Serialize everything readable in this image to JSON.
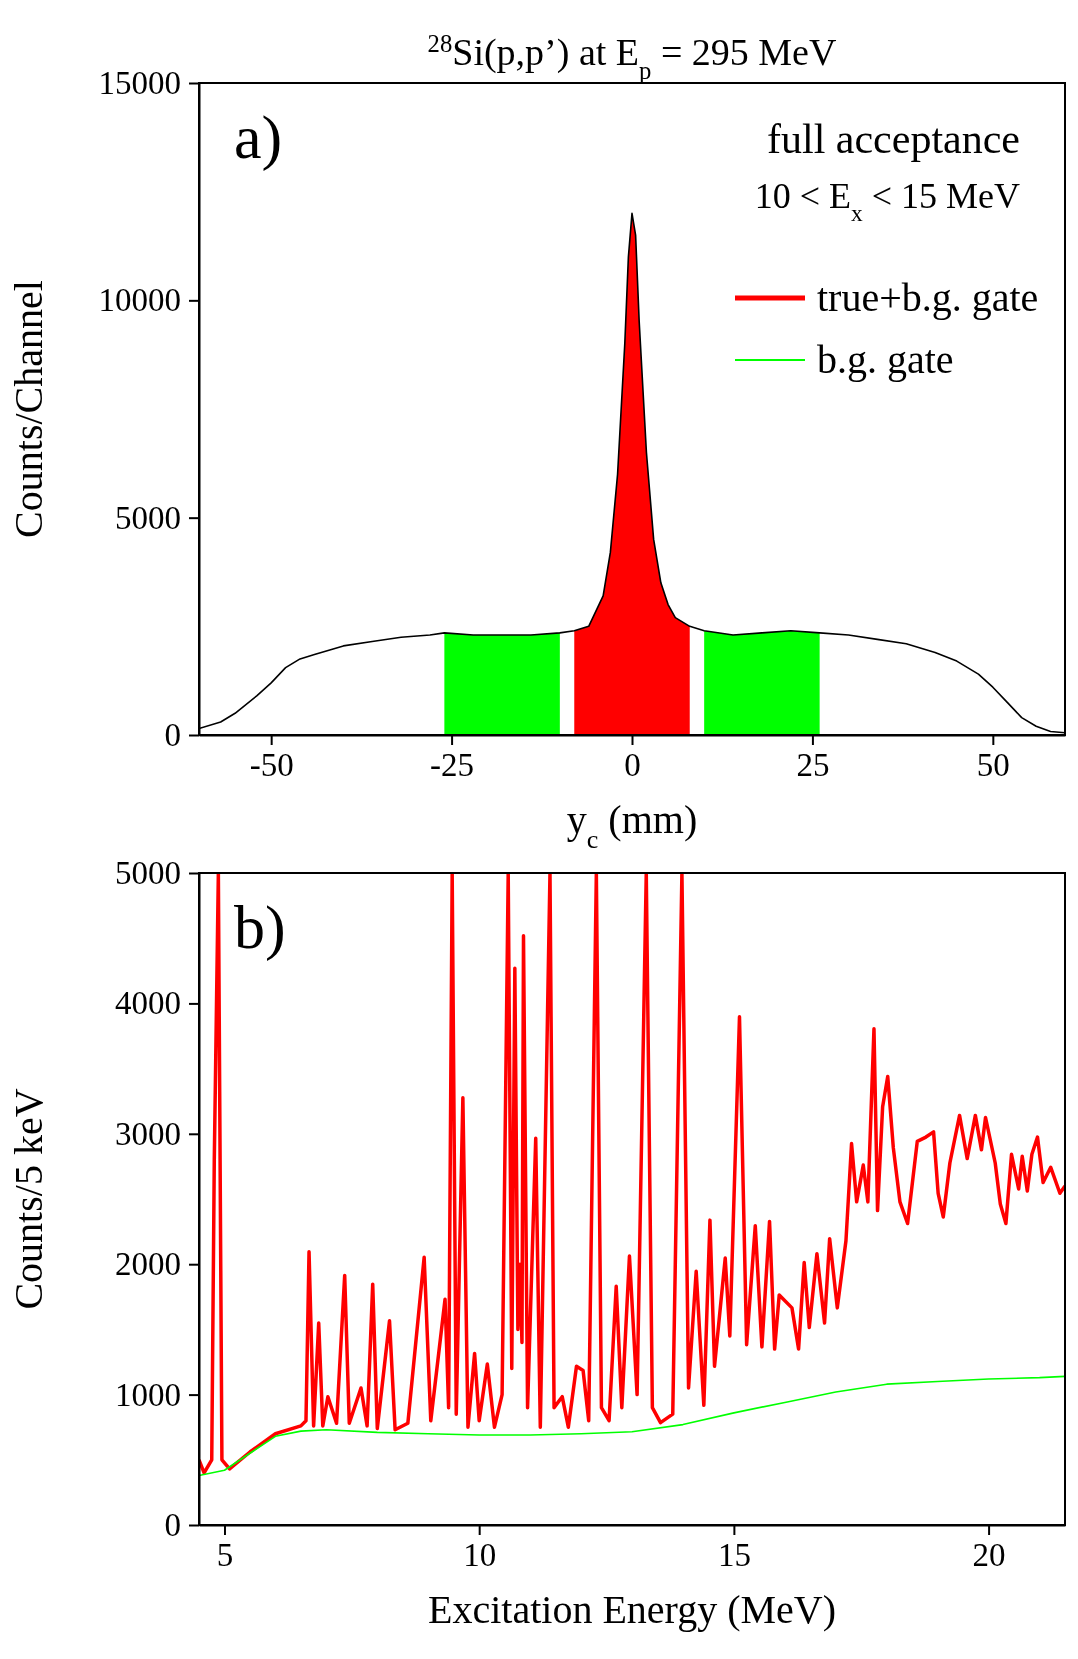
{
  "chart_data": [
    {
      "type": "area",
      "title": "$^{28}$Si(p,p’) at E$_{p}$ = 295 MeV",
      "xlabel": "y$_{c}$ (mm)",
      "ylabel": "Counts/Channel",
      "xlim": [
        -60,
        60
      ],
      "xticks": [
        -50,
        -25,
        0,
        25,
        50
      ],
      "ylim": [
        0,
        15000
      ],
      "yticks": [
        0,
        5000,
        10000,
        15000
      ],
      "grid": false,
      "legend": "top right",
      "annotations": [
        "a)",
        "full acceptance",
        "10 < E$_{x}$ < 15 MeV"
      ],
      "series": [
        {
          "name": "true+b.g. gate",
          "color": "#ff0000",
          "x": [
            -8,
            -6,
            -4,
            -3,
            -2,
            -1,
            -0.5,
            0,
            0.5,
            1,
            2,
            3,
            4,
            5,
            6,
            8
          ],
          "values": [
            2400,
            2500,
            3200,
            4200,
            6000,
            9000,
            11000,
            12000,
            11500,
            9500,
            6500,
            4500,
            3500,
            3000,
            2700,
            2500
          ]
        },
        {
          "name": "b.g. gate",
          "color": "#00ff00",
          "x": [
            -26,
            -22,
            -18,
            -14,
            -10,
            0,
            10,
            14,
            18,
            22,
            26
          ],
          "values": [
            2350,
            2300,
            2300,
            2300,
            2350,
            null,
            2400,
            2300,
            2350,
            2400,
            2350
          ]
        },
        {
          "type": "line",
          "color": "#000000",
          "x": [
            -60,
            -57,
            -55,
            -52,
            -50,
            -48,
            -46,
            -44,
            -42,
            -40,
            -36,
            -32,
            -28,
            -26,
            -22,
            -18,
            -14,
            -10,
            -8,
            -6,
            -4,
            -3,
            -2,
            -1,
            -0.5,
            0,
            0.5,
            1,
            2,
            3,
            4,
            5,
            6,
            8,
            10,
            14,
            18,
            22,
            26,
            30,
            34,
            38,
            42,
            45,
            48,
            50,
            52,
            54,
            56,
            58,
            60
          ],
          "values": [
            150,
            300,
            500,
            900,
            1200,
            1550,
            1750,
            1850,
            1950,
            2050,
            2150,
            2250,
            2300,
            2350,
            2300,
            2300,
            2300,
            2350,
            2400,
            2500,
            3200,
            4200,
            6000,
            9000,
            11000,
            12000,
            11500,
            9500,
            6500,
            4500,
            3500,
            3000,
            2700,
            2500,
            2400,
            2300,
            2350,
            2400,
            2350,
            2300,
            2200,
            2100,
            1900,
            1700,
            1400,
            1100,
            750,
            400,
            200,
            80,
            50
          ]
        }
      ]
    },
    {
      "type": "line",
      "xlabel": "Excitation Energy (MeV)",
      "ylabel": "Counts/5 keV",
      "xlim": [
        4.5,
        21.5
      ],
      "xticks": [
        5,
        10,
        15,
        20
      ],
      "ylim": [
        0,
        5000
      ],
      "yticks": [
        0,
        1000,
        2000,
        3000,
        4000,
        5000
      ],
      "grid": false,
      "annotations": [
        "b)"
      ],
      "series": [
        {
          "color": "#ff0000",
          "x": [
            4.5,
            4.6,
            4.75,
            4.8,
            4.88,
            4.95,
            5.1,
            5.5,
            6,
            6.5,
            6.6,
            6.66,
            6.75,
            6.85,
            6.93,
            7.03,
            7.2,
            7.36,
            7.45,
            7.68,
            7.8,
            7.91,
            8.0,
            8.24,
            8.35,
            8.6,
            8.92,
            9.05,
            9.33,
            9.4,
            9.47,
            9.55,
            9.68,
            9.78,
            9.91,
            10.0,
            10.16,
            10.3,
            10.45,
            10.57,
            10.64,
            10.7,
            10.76,
            10.8,
            10.84,
            10.87,
            10.95,
            11.11,
            11.2,
            11.39,
            11.47,
            11.63,
            11.75,
            11.91,
            12.04,
            12.15,
            12.3,
            12.4,
            12.55,
            12.69,
            12.8,
            12.95,
            13.1,
            13.28,
            13.4,
            13.56,
            13.8,
            13.98,
            14.11,
            14.26,
            14.41,
            14.53,
            14.62,
            14.83,
            14.92,
            15.11,
            15.25,
            15.42,
            15.55,
            15.7,
            15.8,
            15.89,
            16.14,
            16.27,
            16.38,
            16.48,
            16.63,
            16.78,
            16.88,
            17.03,
            17.2,
            17.31,
            17.41,
            17.54,
            17.63,
            17.75,
            17.82,
            17.92,
            18.02,
            18.13,
            18.26,
            18.41,
            18.6,
            18.77,
            18.92,
            19.01,
            19.11,
            19.24,
            19.43,
            19.58,
            19.74,
            19.86,
            19.94,
            20.13,
            20.23,
            20.34,
            20.45,
            20.59,
            20.66,
            20.76,
            20.85,
            20.96,
            21.07,
            21.22,
            21.4,
            21.5
          ],
          "values": [
            500,
            400,
            500,
            2800,
            5000,
            500,
            430,
            560,
            700,
            760,
            800,
            2096,
            760,
            1549,
            760,
            984,
            780,
            1914,
            780,
            1051,
            760,
            1847,
            740,
            1566,
            730,
            780,
            2053,
            800,
            1731,
            900,
            5000,
            850,
            3276,
            750,
            1316,
            800,
            1234,
            750,
            1000,
            5000,
            1200,
            4269,
            1500,
            2000,
            1400,
            4518,
            900,
            2965,
            750,
            5000,
            900,
            984,
            750,
            1217,
            1185,
            800,
            5000,
            900,
            800,
            1831,
            900,
            2063,
            1000,
            5000,
            900,
            785,
            850,
            5000,
            1051,
            1946,
            918,
            2338,
            1217,
            2047,
            1450,
            3898,
            1383,
            2295,
            1366,
            2328,
            1349,
            1764,
            1665,
            1349,
            2013,
            1514,
            2080,
            1549,
            2196,
            1665,
            2180,
            2925,
            2478,
            2760,
            2478,
            3805,
            2411,
            3208,
            3440,
            2892,
            2478,
            2312,
            2942,
            2975,
            3015,
            2544,
            2362,
            2776,
            3141,
            2810,
            3141,
            2877,
            3125,
            2776,
            2461,
            2312,
            2843,
            2577,
            2827,
            2561,
            2843,
            2975,
            2627,
            2743,
            2544,
            2600
          ]
        },
        {
          "color": "#00ff00",
          "x": [
            4.5,
            5,
            5.5,
            6,
            6.5,
            7,
            8,
            9,
            10,
            11,
            12,
            13,
            14,
            15,
            16,
            17,
            18,
            19,
            20,
            21,
            21.5
          ],
          "values": [
            380,
            420,
            550,
            680,
            720,
            730,
            710,
            700,
            690,
            690,
            700,
            715,
            770,
            860,
            940,
            1020,
            1080,
            1100,
            1120,
            1130,
            1140
          ]
        }
      ]
    }
  ]
}
